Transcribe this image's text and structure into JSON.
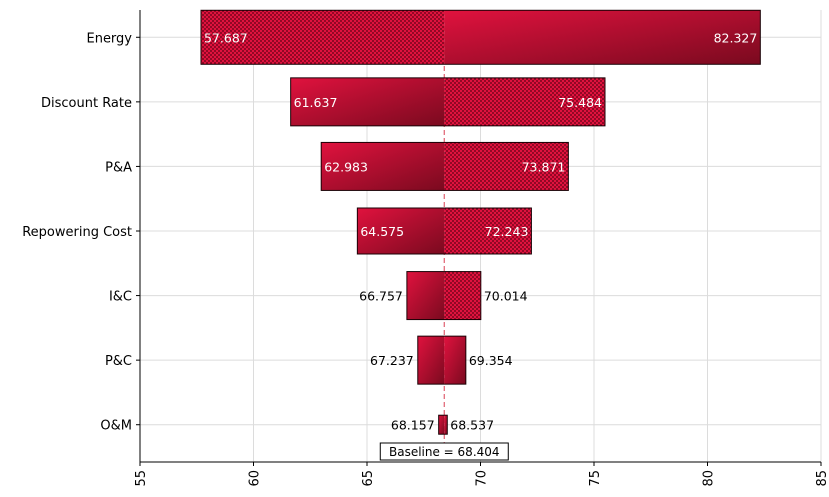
{
  "chart_data": {
    "type": "bar",
    "orientation": "horizontal",
    "subtype": "tornado",
    "title": "",
    "xlabel": "",
    "ylabel": "",
    "xlim": [
      55,
      85
    ],
    "xticks": [
      55,
      60,
      65,
      70,
      75,
      80,
      85
    ],
    "grid": true,
    "baseline": 68.404,
    "baseline_label": "Baseline = 68.404",
    "categories": [
      "Energy",
      "Discount Rate",
      "P&A",
      "Repowering Cost",
      "I&C",
      "P&C",
      "O&M"
    ],
    "low": [
      57.687,
      61.637,
      62.983,
      64.575,
      66.757,
      67.237,
      68.157
    ],
    "high": [
      82.327,
      75.484,
      73.871,
      72.243,
      70.014,
      69.354,
      68.537
    ],
    "low_labels": [
      "57.687",
      "61.637",
      "62.983",
      "64.575",
      "66.757",
      "67.237",
      "68.157"
    ],
    "high_labels": [
      "82.327",
      "75.484",
      "73.871",
      "72.243",
      "70.014",
      "69.354",
      "68.537"
    ],
    "left_pattern": [
      "dotted",
      "solid",
      "solid",
      "solid",
      "solid",
      "solid",
      "solid"
    ],
    "right_pattern": [
      "solid",
      "dotted",
      "dotted",
      "dotted",
      "dotted",
      "solid",
      "solid"
    ],
    "colors": {
      "bar_light": "#e0123e",
      "bar_dark": "#7a0a1f",
      "bar_stroke": "#1a0005",
      "baseline_line": "#e06070"
    }
  }
}
